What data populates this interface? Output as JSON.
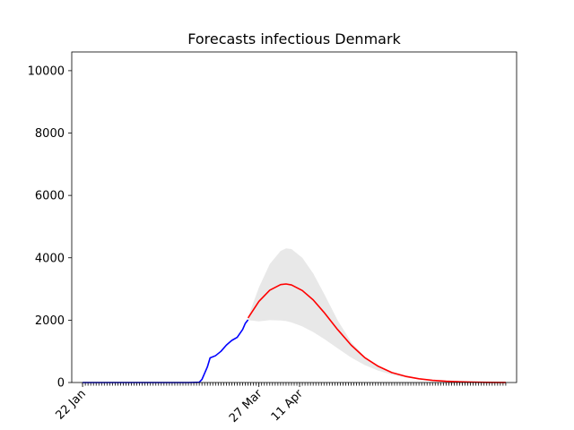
{
  "chart_data": {
    "type": "line",
    "title": "Forecasts infectious Denmark",
    "xlabel": "",
    "ylabel": "",
    "ylim": [
      0,
      10600
    ],
    "y_ticks": [
      0,
      2000,
      4000,
      6000,
      8000,
      10000
    ],
    "x_range_dates": [
      "2020-01-18",
      "2020-06-30"
    ],
    "x_tick_labels": [
      {
        "date": "2020-01-22",
        "label": "22 Jan"
      },
      {
        "date": "2020-03-27",
        "label": "27 Mar"
      },
      {
        "date": "2020-04-11",
        "label": "11 Apr"
      }
    ],
    "minor_ticks": "daily",
    "grid": false,
    "legend": "none",
    "series": [
      {
        "kind": "observed",
        "color": "#0000ff",
        "points": [
          [
            "2020-01-22",
            0
          ],
          [
            "2020-02-10",
            0
          ],
          [
            "2020-03-01",
            0
          ],
          [
            "2020-03-05",
            10
          ],
          [
            "2020-03-06",
            100
          ],
          [
            "2020-03-08",
            500
          ],
          [
            "2020-03-09",
            790
          ],
          [
            "2020-03-11",
            860
          ],
          [
            "2020-03-13",
            1000
          ],
          [
            "2020-03-15",
            1200
          ],
          [
            "2020-03-17",
            1350
          ],
          [
            "2020-03-19",
            1450
          ],
          [
            "2020-03-21",
            1700
          ],
          [
            "2020-03-22",
            1900
          ],
          [
            "2020-03-23",
            2010
          ]
        ]
      },
      {
        "kind": "forecast",
        "color": "#ff0000",
        "points": [
          [
            "2020-03-23",
            2070
          ],
          [
            "2020-03-27",
            2600
          ],
          [
            "2020-03-31",
            2960
          ],
          [
            "2020-04-04",
            3140
          ],
          [
            "2020-04-06",
            3160
          ],
          [
            "2020-04-08",
            3130
          ],
          [
            "2020-04-12",
            2950
          ],
          [
            "2020-04-16",
            2650
          ],
          [
            "2020-04-20",
            2250
          ],
          [
            "2020-04-25",
            1700
          ],
          [
            "2020-04-30",
            1200
          ],
          [
            "2020-05-05",
            800
          ],
          [
            "2020-05-10",
            520
          ],
          [
            "2020-05-15",
            320
          ],
          [
            "2020-05-20",
            200
          ],
          [
            "2020-05-25",
            120
          ],
          [
            "2020-05-30",
            70
          ],
          [
            "2020-06-04",
            40
          ],
          [
            "2020-06-09",
            25
          ],
          [
            "2020-06-14",
            12
          ],
          [
            "2020-06-19",
            6
          ],
          [
            "2020-06-24",
            3
          ],
          [
            "2020-06-26",
            2
          ]
        ]
      }
    ],
    "uncertainty_band": {
      "color": "#d9d9d9",
      "points": [
        [
          "2020-03-23",
          2000,
          2100
        ],
        [
          "2020-03-27",
          1960,
          3050
        ],
        [
          "2020-03-31",
          2000,
          3800
        ],
        [
          "2020-04-04",
          1990,
          4220
        ],
        [
          "2020-04-06",
          1970,
          4300
        ],
        [
          "2020-04-08",
          1930,
          4280
        ],
        [
          "2020-04-12",
          1800,
          4000
        ],
        [
          "2020-04-16",
          1620,
          3500
        ],
        [
          "2020-04-20",
          1400,
          2850
        ],
        [
          "2020-04-25",
          1100,
          2000
        ],
        [
          "2020-04-30",
          800,
          1300
        ],
        [
          "2020-05-05",
          560,
          820
        ],
        [
          "2020-05-10",
          380,
          530
        ],
        [
          "2020-05-15",
          250,
          330
        ],
        [
          "2020-05-20",
          160,
          210
        ],
        [
          "2020-05-25",
          100,
          130
        ],
        [
          "2020-05-30",
          60,
          75
        ],
        [
          "2020-06-04",
          35,
          45
        ],
        [
          "2020-06-09",
          20,
          27
        ],
        [
          "2020-06-14",
          10,
          14
        ],
        [
          "2020-06-19",
          5,
          7
        ],
        [
          "2020-06-24",
          2,
          3
        ],
        [
          "2020-06-26",
          1,
          2
        ]
      ]
    }
  }
}
